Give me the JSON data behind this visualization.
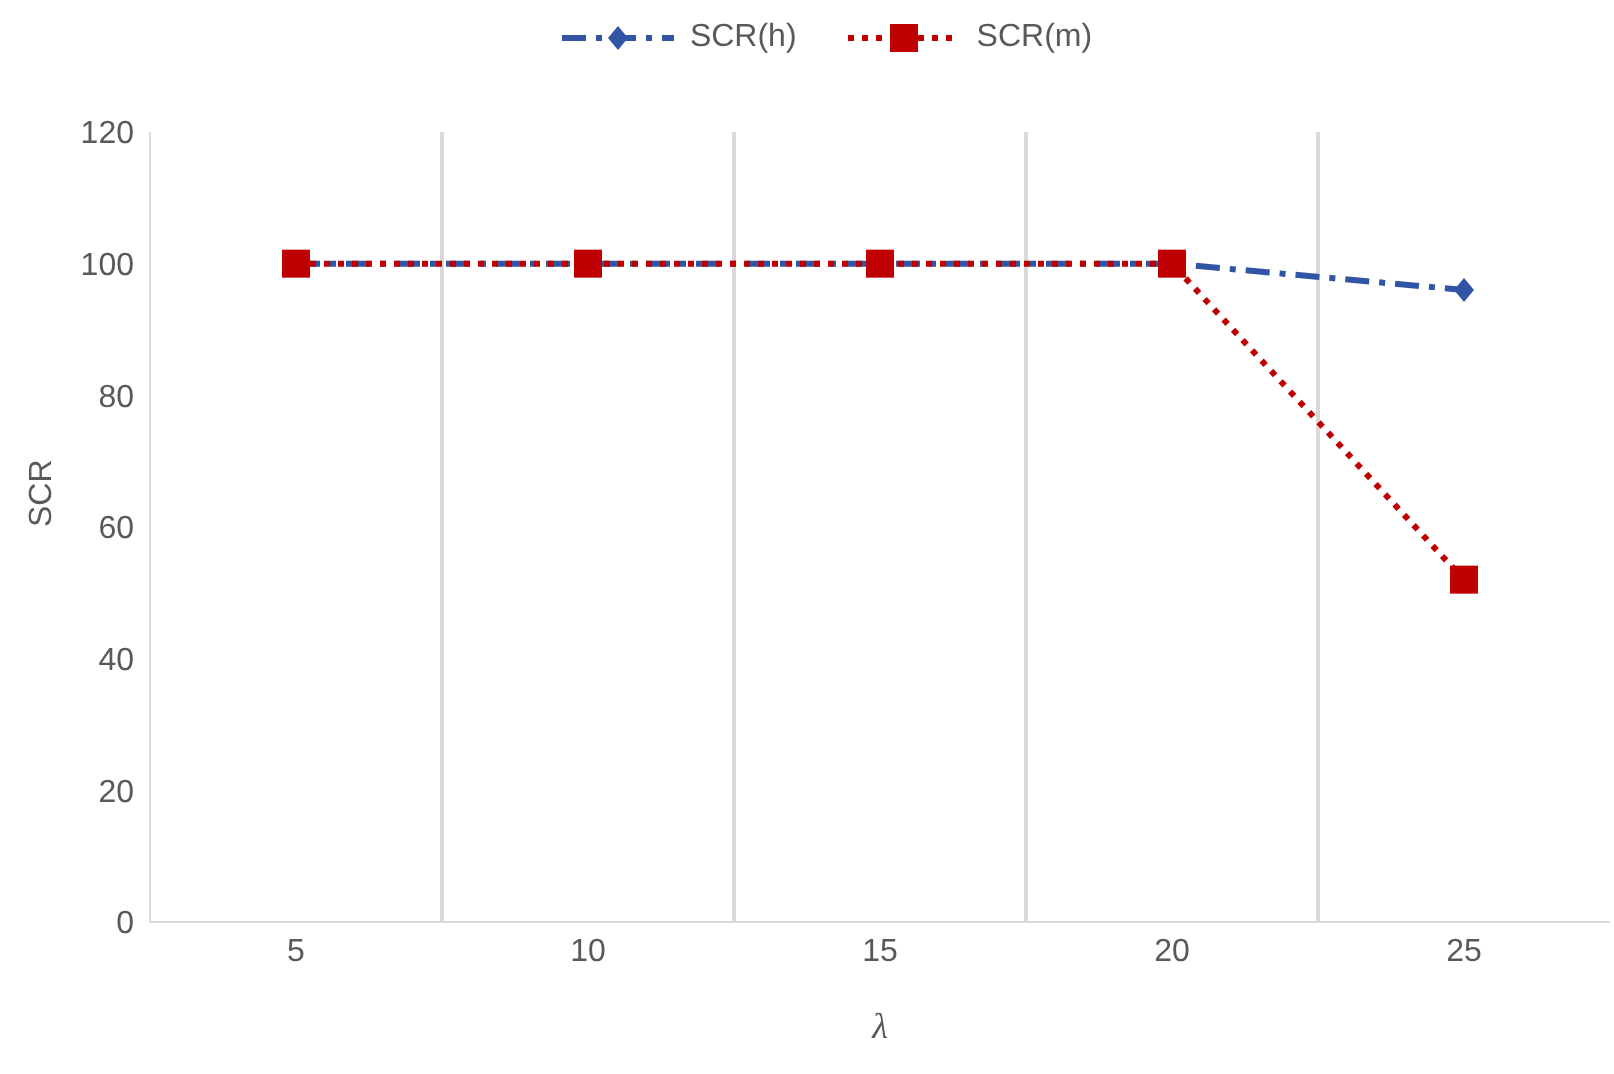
{
  "chart_data": {
    "type": "line",
    "xlabel": "λ",
    "ylabel": "SCR",
    "categories": [
      "5",
      "10",
      "15",
      "20",
      "25"
    ],
    "series": [
      {
        "name": "SCR(h)",
        "color": "#2f55a4",
        "values": [
          100,
          100,
          100,
          100,
          96
        ],
        "marker": "diamond",
        "line_style": "dashed"
      },
      {
        "name": "SCR(m)",
        "color": "#c00000",
        "values": [
          100,
          100,
          100,
          100,
          52
        ],
        "marker": "square",
        "line_style": "dotted"
      }
    ],
    "ylim": [
      0,
      120
    ],
    "yticks": [
      0,
      20,
      40,
      60,
      80,
      100,
      120
    ],
    "grid": "x",
    "legend": "top"
  }
}
